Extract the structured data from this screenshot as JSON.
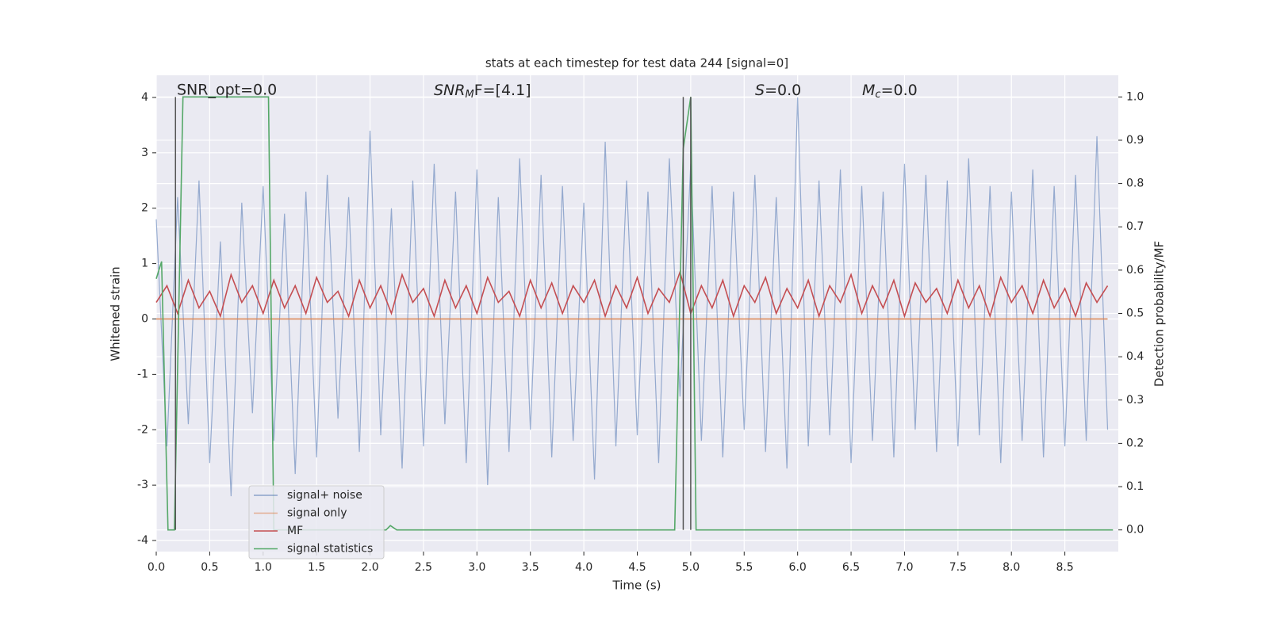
{
  "chart_data": {
    "type": "line",
    "title": "stats at each timestep for test data 244 [signal=0]",
    "xlabel": "Time (s)",
    "ylabel": "Whitened strain",
    "y2label": "Detection probability/MF",
    "annotations": [
      {
        "text": "SNR_opt=0.0"
      },
      {
        "base": "SNR",
        "sub": "M",
        "rest": "F=[4.1]"
      },
      {
        "base": "S",
        "rest": "=0.0"
      },
      {
        "base": "M",
        "sub": "c",
        "rest": "=0.0"
      }
    ],
    "xlim": [
      0,
      9
    ],
    "ylim": [
      -4.2,
      4.4
    ],
    "y2lim": [
      -0.05,
      1.05
    ],
    "xticks": [
      {
        "value": 0,
        "label": "0.0"
      },
      0.5,
      {
        "value": 1,
        "label": "1.0"
      },
      1.5,
      {
        "value": 2,
        "label": "2.0"
      },
      2.5,
      {
        "value": 3,
        "label": "3.0"
      },
      3.5,
      {
        "value": 4,
        "label": "4.0"
      },
      4.5,
      {
        "value": 5,
        "label": "5.0"
      },
      5.5,
      {
        "value": 6,
        "label": "6.0"
      },
      6.5,
      {
        "value": 7,
        "label": "7.0"
      },
      7.5,
      {
        "value": 8,
        "label": "8.0"
      },
      8.5
    ],
    "yticks": [
      -4,
      -3,
      -2,
      -1,
      0,
      1,
      2,
      3,
      4
    ],
    "y2ticks": [
      {
        "value": 0,
        "label": "0.0"
      },
      0.1,
      0.2,
      0.3,
      0.4,
      0.5,
      0.6,
      0.7,
      0.8,
      0.9,
      {
        "value": 1,
        "label": "1.0"
      }
    ],
    "grid": true,
    "legend": "lower left",
    "vlines": [
      0.18,
      4.93,
      5.0
    ],
    "vline_color": "#555555",
    "x": [
      0,
      0.1,
      0.2,
      0.3,
      0.4,
      0.5,
      0.6,
      0.7,
      0.8,
      0.9,
      1,
      1.1,
      1.2,
      1.3,
      1.4,
      1.5,
      1.6,
      1.7,
      1.8,
      1.9,
      2,
      2.1,
      2.2,
      2.3,
      2.4,
      2.5,
      2.6,
      2.7,
      2.8,
      2.9,
      3,
      3.1,
      3.2,
      3.3,
      3.4,
      3.5,
      3.6,
      3.7,
      3.8,
      3.9,
      4,
      4.1,
      4.2,
      4.3,
      4.4,
      4.5,
      4.6,
      4.7,
      4.8,
      4.9,
      5,
      5.1,
      5.2,
      5.3,
      5.4,
      5.5,
      5.6,
      5.7,
      5.8,
      5.9,
      6,
      6.1,
      6.2,
      6.3,
      6.4,
      6.5,
      6.6,
      6.7,
      6.8,
      6.9,
      7,
      7.1,
      7.2,
      7.3,
      7.4,
      7.5,
      7.6,
      7.7,
      7.8,
      7.9,
      8,
      8.1,
      8.2,
      8.3,
      8.4,
      8.5,
      8.6,
      8.7,
      8.8,
      8.9
    ],
    "series": [
      {
        "name": "signal+ noise",
        "color": "#4c72b0",
        "values": [
          1.8,
          -2.3,
          2.2,
          -1.9,
          2.5,
          -2.6,
          1.4,
          -3.2,
          2.1,
          -1.7,
          2.4,
          -2.2,
          1.9,
          -2.8,
          2.3,
          -2.5,
          2.6,
          -1.8,
          2.2,
          -2.4,
          3.4,
          -2.1,
          2.0,
          -2.7,
          2.5,
          -2.3,
          2.8,
          -1.9,
          2.3,
          -2.6,
          2.7,
          -3.0,
          2.2,
          -2.4,
          2.9,
          -2.0,
          2.6,
          -2.5,
          2.4,
          -2.2,
          2.1,
          -2.9,
          3.2,
          -2.3,
          2.5,
          -2.1,
          2.3,
          -2.6,
          2.9,
          -1.4,
          2.8,
          -2.2,
          2.4,
          -2.5,
          2.3,
          -2.0,
          2.6,
          -2.4,
          2.2,
          -2.7,
          4.0,
          -2.3,
          2.5,
          -2.1,
          2.7,
          -2.6,
          2.4,
          -2.2,
          2.3,
          -2.5,
          2.8,
          -2.0,
          2.6,
          -2.4,
          2.5,
          -2.3,
          2.9,
          -2.1,
          2.4,
          -2.6,
          2.3,
          -2.2,
          2.7,
          -2.5,
          2.4,
          -2.3,
          2.6,
          -2.2,
          3.3,
          -2.0
        ]
      },
      {
        "name": "signal only",
        "color": "#dd8452",
        "x": [
          0,
          8.9
        ],
        "values": [
          0,
          0
        ]
      },
      {
        "name": "MF",
        "color": "#c44e52",
        "values": [
          0.3,
          0.6,
          0.1,
          0.7,
          0.2,
          0.5,
          0.05,
          0.8,
          0.3,
          0.6,
          0.1,
          0.7,
          0.2,
          0.6,
          0.1,
          0.75,
          0.3,
          0.5,
          0.05,
          0.7,
          0.2,
          0.6,
          0.1,
          0.8,
          0.3,
          0.55,
          0.05,
          0.7,
          0.2,
          0.6,
          0.1,
          0.75,
          0.3,
          0.5,
          0.05,
          0.7,
          0.2,
          0.65,
          0.1,
          0.6,
          0.3,
          0.7,
          0.05,
          0.6,
          0.2,
          0.75,
          0.1,
          0.55,
          0.3,
          0.85,
          0.1,
          0.6,
          0.2,
          0.7,
          0.05,
          0.6,
          0.3,
          0.75,
          0.1,
          0.55,
          0.2,
          0.7,
          0.05,
          0.6,
          0.3,
          0.8,
          0.1,
          0.6,
          0.2,
          0.7,
          0.05,
          0.65,
          0.3,
          0.55,
          0.1,
          0.7,
          0.2,
          0.6,
          0.05,
          0.75,
          0.3,
          0.6,
          0.1,
          0.7,
          0.2,
          0.55,
          0.05,
          0.65,
          0.3,
          0.6
        ]
      },
      {
        "name": "signal statistics",
        "color": "#55a868",
        "axis": "y2",
        "x": [
          0,
          0.05,
          0.11,
          0.17,
          0.25,
          1.05,
          1.1,
          2.15,
          2.19,
          2.25,
          4.85,
          4.93,
          5.0,
          5.05,
          8.95
        ],
        "values": [
          0.58,
          0.62,
          0,
          0,
          1,
          1,
          0,
          0,
          0.01,
          0,
          0,
          0.88,
          1,
          0,
          0
        ]
      }
    ]
  }
}
